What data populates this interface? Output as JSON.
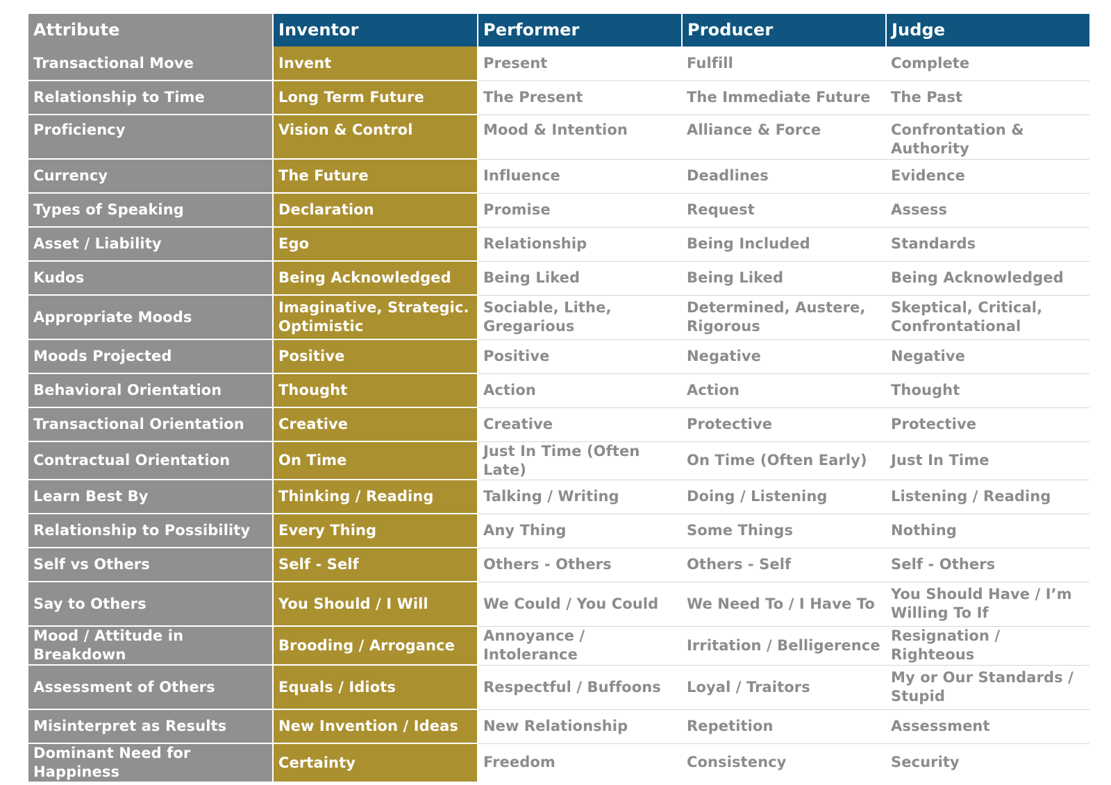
{
  "headers": [
    "Attribute",
    "Inventor",
    "Performer",
    "Producer",
    "Judge"
  ],
  "rows": [
    {
      "attribute": "Transactional Move",
      "inventor": "Invent",
      "performer": "Present",
      "producer": "Fulfill",
      "judge": "Complete"
    },
    {
      "attribute": "Relationship to Time",
      "inventor": "Long Term Future",
      "performer": "The Present",
      "producer": "The Immediate Future",
      "judge": "The Past"
    },
    {
      "attribute": "Proficiency",
      "inventor": "Vision & Control",
      "performer": "Mood & Intention",
      "producer": "Alliance & Force",
      "judge": "Confrontation & Authority"
    },
    {
      "attribute": "Currency",
      "inventor": "The Future",
      "performer": "Influence",
      "producer": "Deadlines",
      "judge": "Evidence"
    },
    {
      "attribute": "Types of Speaking",
      "inventor": "Declaration",
      "performer": "Promise",
      "producer": "Request",
      "judge": "Assess"
    },
    {
      "attribute": "Asset / Liability",
      "inventor": "Ego",
      "performer": "Relationship",
      "producer": "Being Included",
      "judge": "Standards"
    },
    {
      "attribute": "Kudos",
      "inventor": "Being Acknowledged",
      "performer": "Being Liked",
      "producer": "Being Liked",
      "judge": "Being Acknowledged"
    },
    {
      "attribute": "Appropriate Moods",
      "inventor": "Imaginative, Strategic. Optimistic",
      "performer": "Sociable, Lithe, Gregarious",
      "producer": "Determined, Austere, Rigorous",
      "judge": "Skeptical, Critical, Confrontational"
    },
    {
      "attribute": "Moods Projected",
      "inventor": "Positive",
      "performer": "Positive",
      "producer": "Negative",
      "judge": "Negative"
    },
    {
      "attribute": "Behavioral Orientation",
      "inventor": "Thought",
      "performer": "Action",
      "producer": "Action",
      "judge": "Thought"
    },
    {
      "attribute": "Transactional Orientation",
      "inventor": "Creative",
      "performer": "Creative",
      "producer": "Protective",
      "judge": "Protective"
    },
    {
      "attribute": "Contractual Orientation",
      "inventor": "On Time",
      "performer": "Just In Time (Often Late)",
      "producer": "On Time (Often Early)",
      "judge": "Just In Time"
    },
    {
      "attribute": "Learn Best By",
      "inventor": "Thinking / Reading",
      "performer": "Talking / Writing",
      "producer": "Doing / Listening",
      "judge": "Listening / Reading"
    },
    {
      "attribute": "Relationship to Possibility",
      "inventor": "Every Thing",
      "performer": "Any Thing",
      "producer": "Some Things",
      "judge": "Nothing"
    },
    {
      "attribute": "Self vs Others",
      "inventor": "Self - Self",
      "performer": "Others - Others",
      "producer": "Others - Self",
      "judge": "Self - Others"
    },
    {
      "attribute": "Say to Others",
      "inventor": "You Should / I Will",
      "performer": "We Could / You Could",
      "producer": "We Need To / I Have To",
      "judge": "You Should Have / I’m Willing To If"
    },
    {
      "attribute": "Mood / Attitude in Breakdown",
      "inventor": "Brooding / Arrogance",
      "performer": "Annoyance / Intolerance",
      "producer": "Irritation / Belligerence",
      "judge": "Resignation / Righteous"
    },
    {
      "attribute": "Assessment of Others",
      "inventor": "Equals / Idiots",
      "performer": "Respectful / Buffoons",
      "producer": "Loyal / Traitors",
      "judge": "My or Our Standards / Stupid"
    },
    {
      "attribute": "Misinterpret as Results",
      "inventor": "New Invention / Ideas",
      "performer": "New Relationship",
      "producer": "Repetition",
      "judge": "Assessment"
    },
    {
      "attribute": "Dominant Need for Happiness",
      "inventor": "Certainty",
      "performer": "Freedom",
      "producer": "Consistency",
      "judge": "Security"
    }
  ],
  "colors": {
    "header_blue": "#0f557f",
    "attribute_gray": "#909090",
    "inventor_gold": "#ab9030",
    "body_text_gray": "#8c8c8c"
  }
}
